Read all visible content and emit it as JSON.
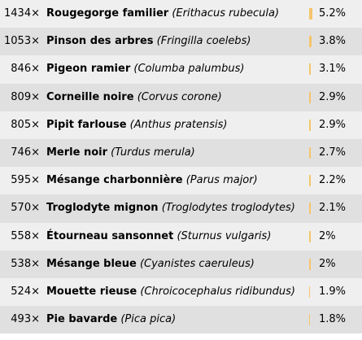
{
  "colors": {
    "row_odd": "#efefef",
    "row_even": "#e0e0e0",
    "bar": "#f5c56b"
  },
  "rows": [
    {
      "count": "1434×",
      "common": "Rougegorge familier",
      "scientific": "(Erithacus rubecula)",
      "percent": "5.2%",
      "share": 5.2
    },
    {
      "count": "1053×",
      "common": "Pinson des arbres",
      "scientific": "(Fringilla coelebs)",
      "percent": "3.8%",
      "share": 3.8
    },
    {
      "count": "846×",
      "common": "Pigeon ramier",
      "scientific": "(Columba palumbus)",
      "percent": "3.1%",
      "share": 3.1
    },
    {
      "count": "809×",
      "common": "Corneille noire",
      "scientific": "(Corvus corone)",
      "percent": "2.9%",
      "share": 2.9
    },
    {
      "count": "805×",
      "common": "Pipit farlouse",
      "scientific": "(Anthus pratensis)",
      "percent": "2.9%",
      "share": 2.9
    },
    {
      "count": "746×",
      "common": "Merle noir",
      "scientific": "(Turdus merula)",
      "percent": "2.7%",
      "share": 2.7
    },
    {
      "count": "595×",
      "common": "Mésange charbonnière",
      "scientific": "(Parus major)",
      "percent": "2.2%",
      "share": 2.2
    },
    {
      "count": "570×",
      "common": "Troglodyte mignon",
      "scientific": "(Troglodytes troglodytes)",
      "percent": "2.1%",
      "share": 2.1
    },
    {
      "count": "558×",
      "common": "Étourneau sansonnet",
      "scientific": "(Sturnus vulgaris)",
      "percent": "2%",
      "share": 2.0
    },
    {
      "count": "538×",
      "common": "Mésange bleue",
      "scientific": "(Cyanistes caeruleus)",
      "percent": "2%",
      "share": 2.0
    },
    {
      "count": "524×",
      "common": "Mouette rieuse",
      "scientific": "(Chroicocephalus ridibundus)",
      "percent": "1.9%",
      "share": 1.9
    },
    {
      "count": "493×",
      "common": "Pie bavarde",
      "scientific": "(Pica pica)",
      "percent": "1.8%",
      "share": 1.8
    }
  ]
}
